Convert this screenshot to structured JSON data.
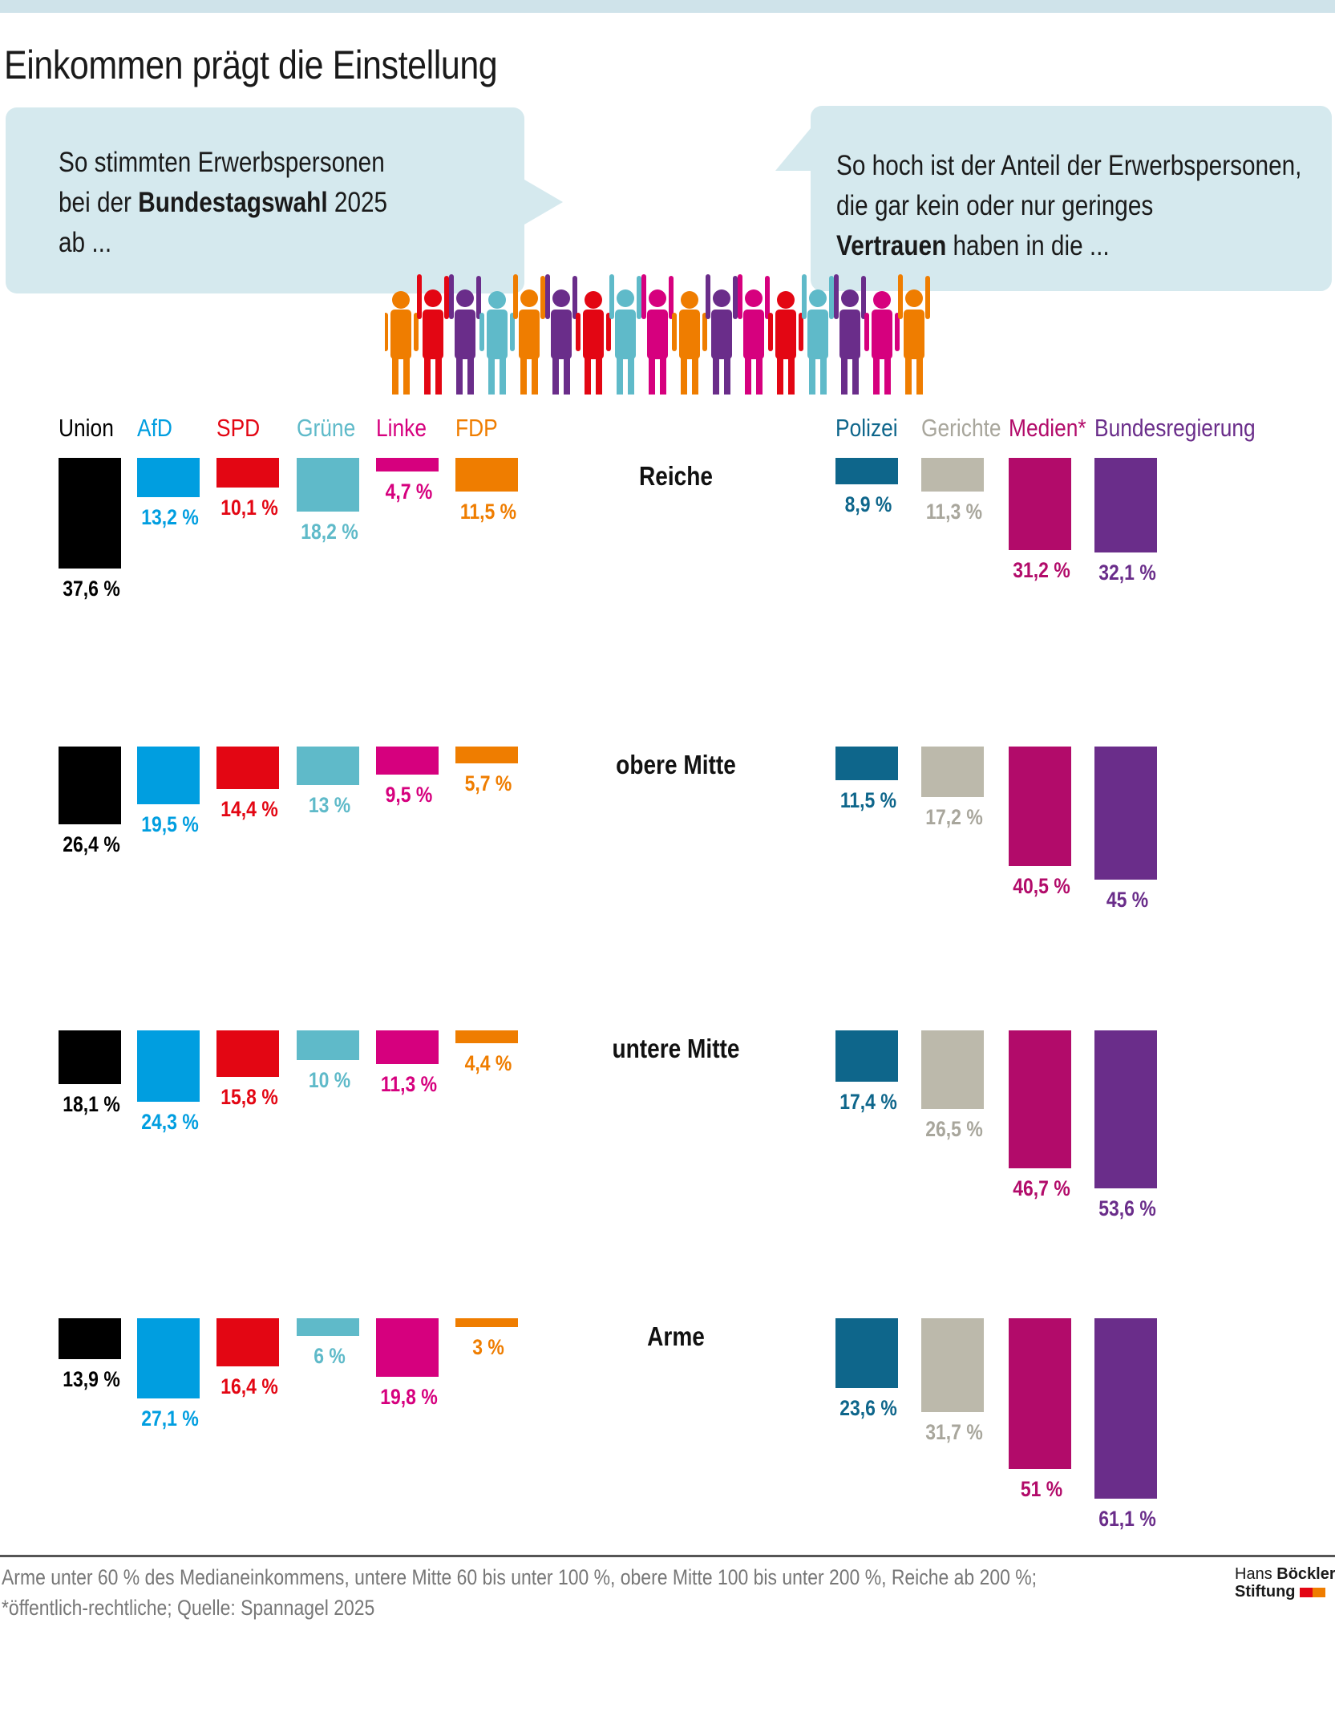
{
  "title": "Einkommen prägt die Einstellung",
  "bubble_left": {
    "line1": "So stimmten Erwerbspersonen",
    "line2_pre": "bei der ",
    "line2_bold": "Bundestagswahl",
    "line2_post": " 2025",
    "line3": "ab ..."
  },
  "bubble_right": {
    "line1": "So hoch ist der Anteil der Erwerbspersonen,",
    "line2": "die gar kein oder nur geringes",
    "line3_bold": "Vertrauen",
    "line3_post": " haben in die ..."
  },
  "people_colors": [
    "#ef7d00",
    "#e30613",
    "#6a2d8a",
    "#5fbac9",
    "#ef7d00",
    "#6a2d8a",
    "#e30613",
    "#5fbac9",
    "#d6007e",
    "#ef7d00",
    "#6a2d8a",
    "#d6007e",
    "#e30613",
    "#5fbac9",
    "#6a2d8a",
    "#d6007e",
    "#ef7d00"
  ],
  "chart_data": {
    "type": "bar",
    "groups": [
      "Reiche",
      "obere Mitte",
      "untere Mitte",
      "Arme"
    ],
    "left_panel": {
      "categories": [
        "Union",
        "AfD",
        "SPD",
        "Grüne",
        "Linke",
        "FDP"
      ],
      "colors": [
        "#000000",
        "#009ee0",
        "#e30613",
        "#5fbac9",
        "#d6007e",
        "#ef7d00"
      ],
      "label_colors": [
        "#000000",
        "#009ee0",
        "#e30613",
        "#5fbac9",
        "#d6007e",
        "#ef7d00"
      ],
      "values": [
        [
          37.6,
          13.2,
          10.1,
          18.2,
          4.7,
          11.5
        ],
        [
          26.4,
          19.5,
          14.4,
          13,
          9.5,
          5.7
        ],
        [
          18.1,
          24.3,
          15.8,
          10,
          11.3,
          4.4
        ],
        [
          13.9,
          27.1,
          16.4,
          6,
          19.8,
          3
        ]
      ],
      "labels": [
        [
          "37,6 %",
          "13,2 %",
          "10,1 %",
          "18,2 %",
          "4,7 %",
          "11,5 %"
        ],
        [
          "26,4 %",
          "19,5 %",
          "14,4 %",
          "13 %",
          "9,5 %",
          "5,7 %"
        ],
        [
          "18,1 %",
          "24,3 %",
          "15,8 %",
          "10 %",
          "11,3 %",
          "4,4 %"
        ],
        [
          "13,9 %",
          "27,1 %",
          "16,4 %",
          "6 %",
          "19,8 %",
          "3 %"
        ]
      ]
    },
    "right_panel": {
      "categories": [
        "Polizei",
        "Gerichte",
        "Medien*",
        "Bundesregierung"
      ],
      "colors": [
        "#0e668b",
        "#bcb9ab",
        "#b20b6a",
        "#6a2d8a"
      ],
      "label_colors": [
        "#0e668b",
        "#a8a69c",
        "#b20b6a",
        "#6a2d8a"
      ],
      "values": [
        [
          8.9,
          11.3,
          31.2,
          32.1
        ],
        [
          11.5,
          17.2,
          40.5,
          45
        ],
        [
          17.4,
          26.5,
          46.7,
          53.6
        ],
        [
          23.6,
          31.7,
          51,
          61.1
        ]
      ],
      "labels": [
        [
          "8,9 %",
          "11,3 %",
          "31,2 %",
          "32,1 %"
        ],
        [
          "11,5 %",
          "17,2 %",
          "40,5 %",
          "45 %"
        ],
        [
          "17,4 %",
          "26,5 %",
          "46,7 %",
          "53,6 %"
        ],
        [
          "23,6 %",
          "31,7 %",
          "51 %",
          "61,1 %"
        ]
      ]
    },
    "unit": "%"
  },
  "footer": {
    "line1": "Arme unter 60 % des Medianeinkommens, untere Mitte 60 bis unter 100 %, obere Mitte 100 bis unter 200 %, Reiche ab 200 %;",
    "line2": "*öffentlich-rechtliche; Quelle: Spannagel 2025"
  },
  "logo": {
    "hans": "Hans ",
    "boeckler": "Böckler",
    "stiftung": "Stiftung",
    "colors": [
      "#e30613",
      "#ef7d00"
    ]
  }
}
